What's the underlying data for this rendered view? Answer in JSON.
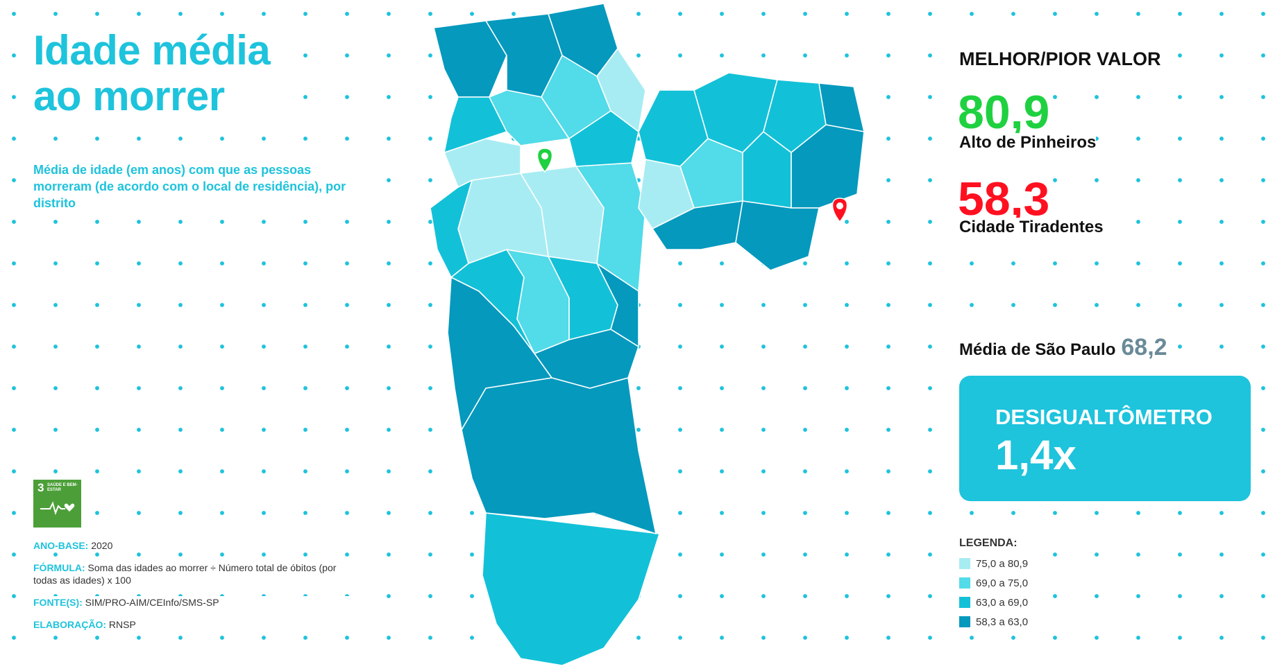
{
  "title_line1": "Idade média",
  "title_line2": "ao morrer",
  "subtitle": "Média de idade (em anos) com que as pessoas morreram (de acordo com o local de residência), por distrito",
  "sdg": {
    "number": "3",
    "label": "SAÚDE E BEM-ESTAR",
    "color": "#4c9f38"
  },
  "meta": {
    "ano_base_label": "ANO-BASE:",
    "ano_base_value": "2020",
    "formula_label": "FÓRMULA:",
    "formula_value": "Soma das idades ao morrer ÷ Número total de óbitos (por todas as idades) x 100",
    "fonte_label": "FONTE(S):",
    "fonte_value": "SIM/PRO-AIM/CEInfo/SMS-SP",
    "elaboracao_label": "ELABORAÇÃO:",
    "elaboracao_value": "RNSP"
  },
  "best_worst": {
    "heading": "MELHOR/PIOR VALOR",
    "best_value": "80,9",
    "best_place": "Alto de Pinheiros",
    "best_color": "#1fd140",
    "worst_value": "58,3",
    "worst_place": "Cidade Tiradentes",
    "worst_color": "#ff1020"
  },
  "average": {
    "label": "Média de São Paulo",
    "value": "68,2"
  },
  "desigualtometro": {
    "label": "DESIGUALTÔMETRO",
    "value": "1,4x"
  },
  "legend": {
    "title": "LEGENDA:",
    "items": [
      {
        "label": "75,0 a 80,9",
        "color": "#a8ecf3"
      },
      {
        "label": "69,0 a 75,0",
        "color": "#52dbe8"
      },
      {
        "label": "63,0 a 69,0",
        "color": "#12c1d8"
      },
      {
        "label": "58,3 a 63,0",
        "color": "#0599bd"
      }
    ]
  },
  "markers": {
    "best": "green-pin-icon",
    "worst": "red-pin-icon"
  }
}
